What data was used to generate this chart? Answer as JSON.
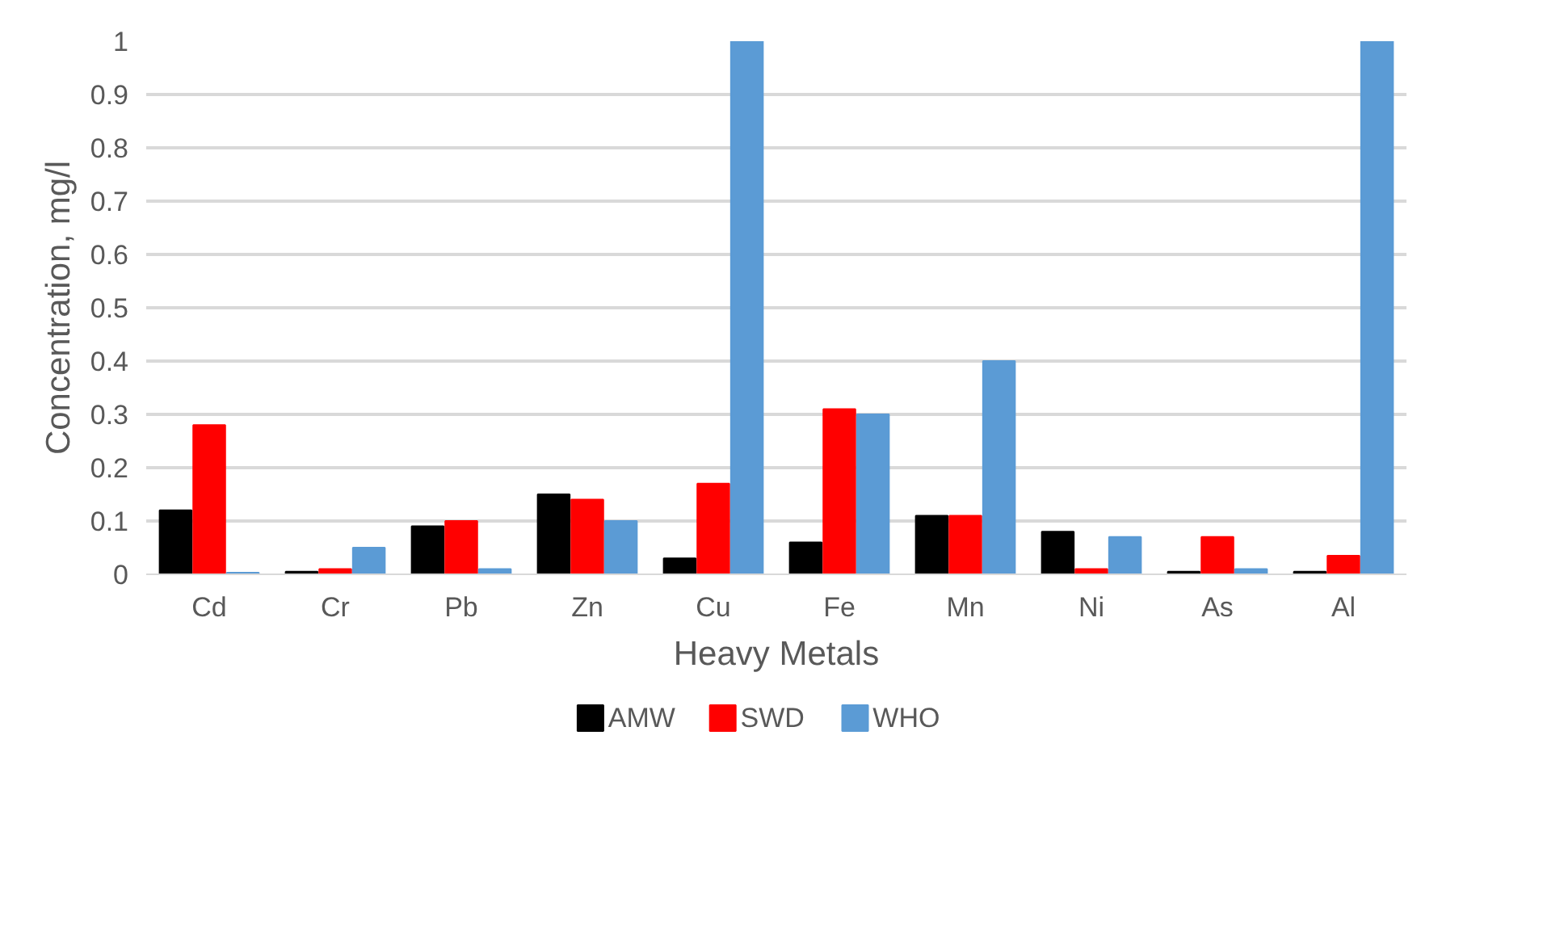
{
  "chart_data": {
    "type": "bar",
    "xlabel": "Heavy Metals",
    "ylabel": "Concentration, mg/l",
    "categories": [
      "Cd",
      "Cr",
      "Pb",
      "Zn",
      "Cu",
      "Fe",
      "Mn",
      "Ni",
      "As",
      "Al"
    ],
    "series": [
      {
        "name": "AMW",
        "color": "#000000",
        "values": [
          0.12,
          0.005,
          0.09,
          0.15,
          0.03,
          0.06,
          0.11,
          0.08,
          0.005,
          0.005
        ]
      },
      {
        "name": "SWD",
        "color": "#ff0000",
        "values": [
          0.28,
          0.01,
          0.1,
          0.14,
          0.17,
          0.31,
          0.11,
          0.01,
          0.07,
          0.035
        ]
      },
      {
        "name": "WHO",
        "color": "#5b9bd5",
        "values": [
          0.003,
          0.05,
          0.01,
          0.1,
          1,
          0.3,
          0.4,
          0.07,
          0.01,
          1
        ]
      }
    ],
    "ylim": [
      0,
      1
    ],
    "yticks": [
      0,
      0.1,
      0.2,
      0.3,
      0.4,
      0.5,
      0.6,
      0.7,
      0.8,
      0.9,
      1
    ],
    "grid": "y",
    "legend": "bottom"
  }
}
